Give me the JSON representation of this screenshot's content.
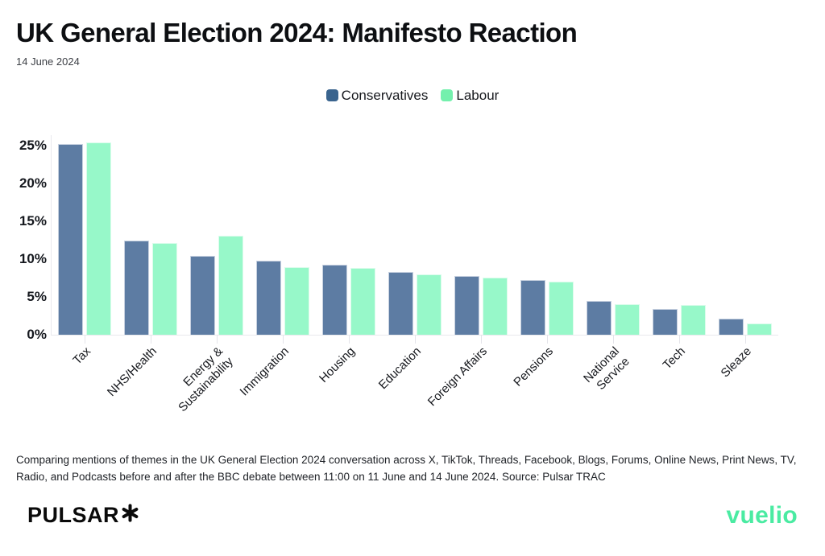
{
  "header": {
    "title": "UK General Election 2024: Manifesto Reaction",
    "date": "14 June 2024"
  },
  "chart_data": {
    "type": "bar",
    "title": "UK General Election 2024: Manifesto Reaction",
    "categories": [
      "Tax",
      "NHS/Health",
      "Energy &\nSustainability",
      "Immigration",
      "Housing",
      "Education",
      "Foreign Affairs",
      "Pensions",
      "National\nService",
      "Tech",
      "Sleaze"
    ],
    "series": [
      {
        "name": "Conservatives",
        "values": [
          25.2,
          12.4,
          10.4,
          9.8,
          9.2,
          8.3,
          7.8,
          7.2,
          4.5,
          3.4,
          2.1
        ],
        "color": "#5d7ca3",
        "border_color": "#c7d1e0",
        "legend_color": "#3a648e"
      },
      {
        "name": "Labour",
        "values": [
          25.4,
          12.1,
          13.1,
          8.9,
          8.8,
          8.0,
          7.5,
          7.0,
          4.0,
          3.9,
          1.5
        ],
        "color": "#97f8c9",
        "border_color": "#dcfcec",
        "legend_color": "#74f0ad"
      }
    ],
    "xlabel": "",
    "ylabel": "",
    "y_ticks": [
      {
        "label": "0%",
        "value": 0
      },
      {
        "label": "5%",
        "value": 5
      },
      {
        "label": "10%",
        "value": 10
      },
      {
        "label": "15%",
        "value": 15
      },
      {
        "label": "20%",
        "value": 20
      },
      {
        "label": "25%",
        "value": 25
      }
    ],
    "ylim": [
      0,
      26.4
    ],
    "unit": "%",
    "grid": false,
    "legend_position": "top-center"
  },
  "footnote": "Comparing mentions of themes in the UK General Election 2024 conversation across X, TikTok, Threads, Facebook, Blogs, Forums, Online News, Print News, TV, Radio, and Podcasts before and after the BBC debate between 11:00 on 11 June and 14 June 2024. Source: Pulsar TRAC",
  "footer": {
    "pulsar_logo": "PULSAR",
    "vuelio_logo": "vuelio",
    "vuelio_color": "#4aeba2"
  }
}
